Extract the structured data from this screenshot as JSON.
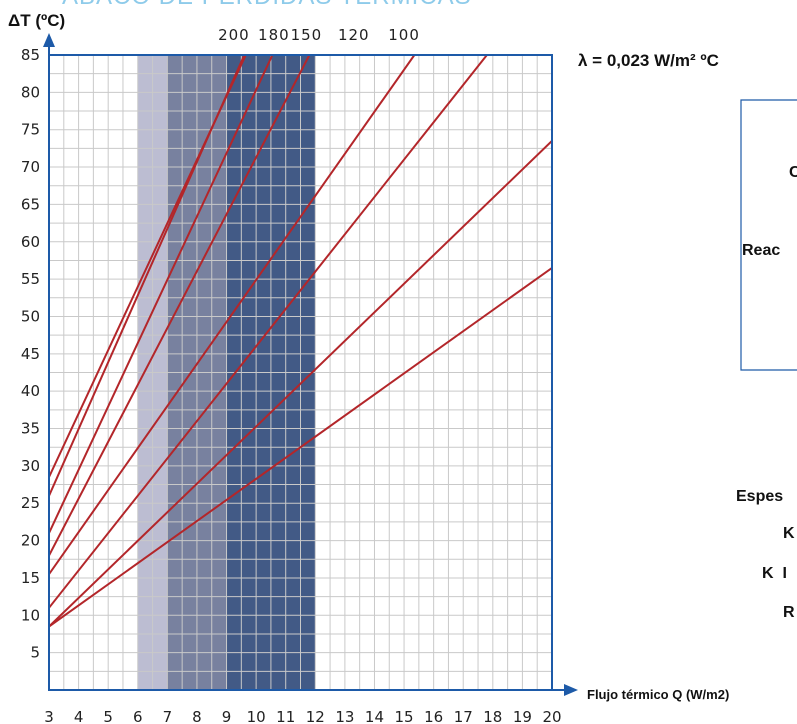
{
  "banner_text": "ÁBACO DE PÉRDIDAS TÉRMICAS",
  "lambda_label": "λ = 0,023 W/m² ºC",
  "side_labels": [
    "C",
    "Reac",
    "Espes",
    "K",
    "K  I",
    "R"
  ],
  "chart_data": {
    "type": "line",
    "xlabel": "Flujo térmico Q (W/m2)",
    "ylabel": "ΔT (ºC)",
    "xlim": [
      3,
      20
    ],
    "ylim": [
      0,
      85
    ],
    "x_ticks": [
      3,
      4,
      5,
      6,
      7,
      8,
      9,
      10,
      11,
      12,
      13,
      14,
      15,
      16,
      17,
      18,
      19,
      20
    ],
    "y_ticks": [
      5,
      10,
      15,
      20,
      25,
      30,
      35,
      40,
      45,
      50,
      55,
      60,
      65,
      70,
      75,
      80,
      85
    ],
    "grid": true,
    "top_labels": [
      {
        "text": "200",
        "x": 9.25
      },
      {
        "text": "180",
        "x": 10.6
      },
      {
        "text": "150",
        "x": 11.7
      },
      {
        "text": "120",
        "x": 13.3
      },
      {
        "text": "100",
        "x": 15.0
      }
    ],
    "shaded_bands": [
      {
        "x0": 6,
        "x1": 7,
        "color": "#bcbdd2"
      },
      {
        "x0": 7,
        "x1": 9,
        "color": "#78819f"
      },
      {
        "x0": 9,
        "x1": 12,
        "color": "#425a86"
      }
    ],
    "series": [
      {
        "x": [
          3,
          9.65
        ],
        "y": [
          28.5,
          85
        ]
      },
      {
        "x": [
          3,
          9.6
        ],
        "y": [
          26,
          85
        ]
      },
      {
        "x": [
          3,
          10.55
        ],
        "y": [
          21,
          85
        ]
      },
      {
        "x": [
          3,
          11.8
        ],
        "y": [
          18,
          85
        ]
      },
      {
        "x": [
          3,
          15.35
        ],
        "y": [
          15.5,
          85
        ]
      },
      {
        "x": [
          3,
          17.8
        ],
        "y": [
          11,
          85
        ]
      },
      {
        "x": [
          3,
          20
        ],
        "y": [
          8.5,
          73.5
        ]
      },
      {
        "x": [
          3,
          20
        ],
        "y": [
          8.5,
          56.5
        ]
      }
    ],
    "line_color": "#b3262a",
    "frame_color": "#1d5aa8"
  }
}
